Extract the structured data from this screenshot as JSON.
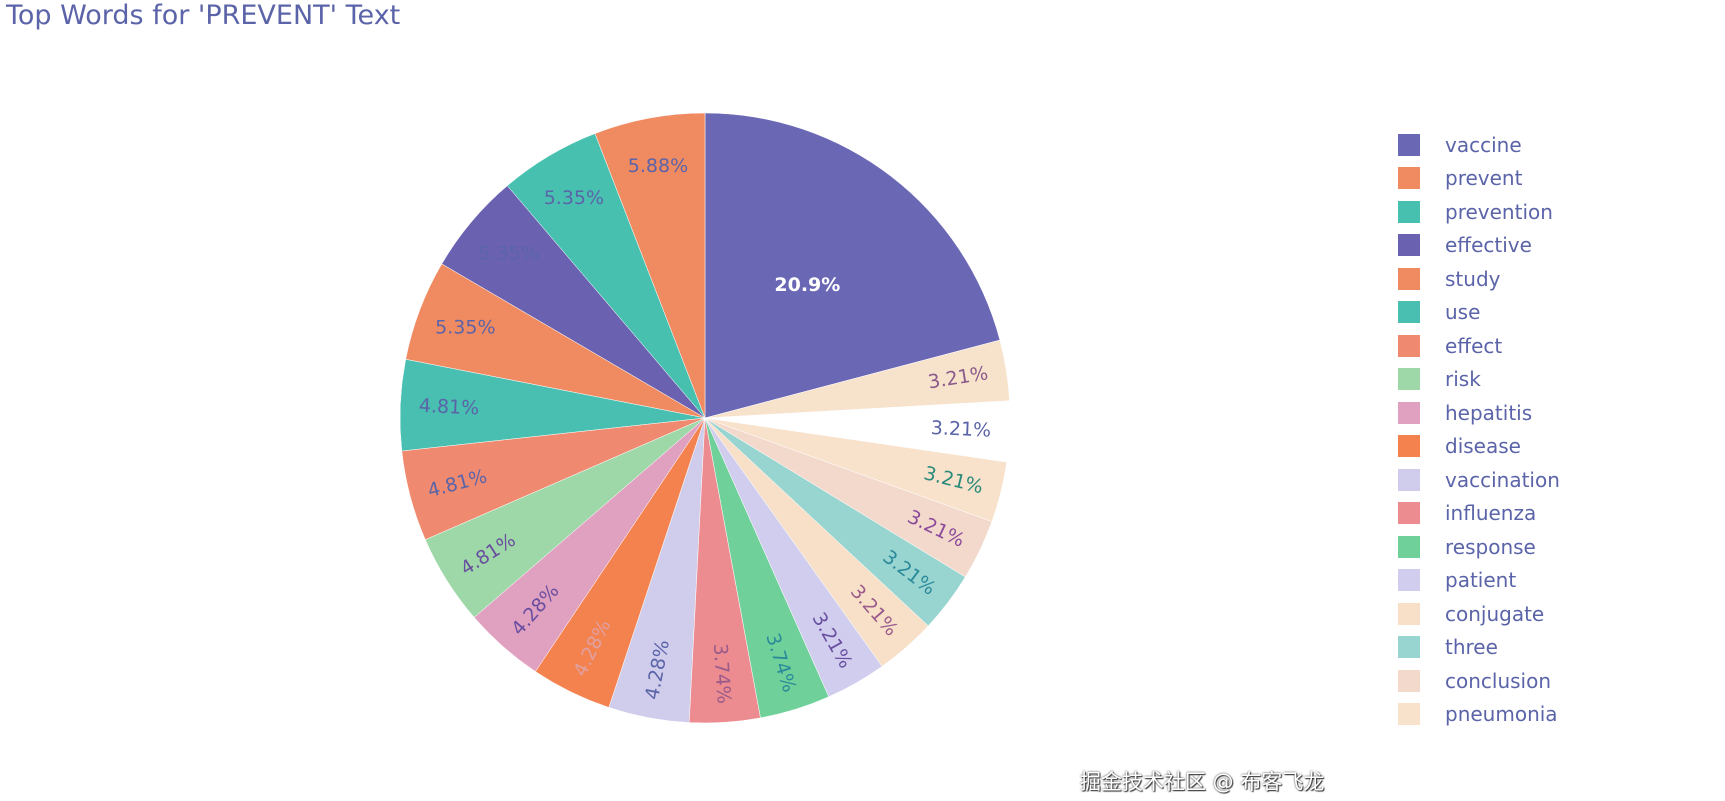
{
  "chart_data": {
    "type": "pie",
    "title": "Top Words for 'PREVENT' Text",
    "direction": "counterclockwise",
    "sort": "descending",
    "legend_placement": "right",
    "labels": [
      "vaccine",
      "prevent",
      "prevention",
      "effective",
      "study",
      "use",
      "effect",
      "risk",
      "hepatitis",
      "disease",
      "vaccination",
      "influenza",
      "response",
      "patient",
      "conjugate",
      "three",
      "conclusion",
      "pneumonia",
      "",
      ""
    ],
    "values": [
      20.9,
      5.88,
      5.35,
      5.35,
      5.35,
      4.81,
      4.81,
      4.81,
      4.28,
      4.28,
      4.28,
      3.74,
      3.74,
      3.21,
      3.21,
      3.21,
      3.21,
      3.21,
      3.21,
      3.21
    ],
    "text_labels": [
      "20.9%",
      "5.88%",
      "5.35%",
      "5.35%",
      "5.35%",
      "4.81%",
      "4.81%",
      "4.81%",
      "4.28%",
      "4.28%",
      "4.28%",
      "3.74%",
      "3.74%",
      "3.21%",
      "3.21%",
      "3.21%",
      "3.21%",
      "3.21%",
      "3.21%",
      "3.21%"
    ],
    "colors": [
      "#6a67b4",
      "#f08a60",
      "#48c0b0",
      "#6a62b0",
      "#f08a60",
      "#48bfb0",
      "#ef8a70",
      "#9ed8a8",
      "#e0a0c0",
      "#f4824e",
      "#d0cdec",
      "#ec8c90",
      "#6fd09a",
      "#d0cdee",
      "#f8e0c8",
      "#98d4d0",
      "#f3d8cc",
      "#f8e2cc",
      "#ffffff",
      "#f7e2cc"
    ],
    "text_colors": [
      "#ffffff",
      "#5b64a8",
      "#5b64a8",
      "#5b64a8",
      "#5b64a8",
      "#5b64a8",
      "#5b64a8",
      "#6a4fa0",
      "#6a4fa0",
      "#e0a0a0",
      "#5b64a8",
      "#9a5a8a",
      "#2a8a9a",
      "#6a4fa0",
      "#9a5a8a",
      "#2a8a9a",
      "#8a4a9a",
      "#2a8a7a",
      "#5b64a8",
      "#8a5a8a"
    ],
    "legend_visible_count": 18
  },
  "watermark": "掘金技术社区 @ 布客飞龙"
}
